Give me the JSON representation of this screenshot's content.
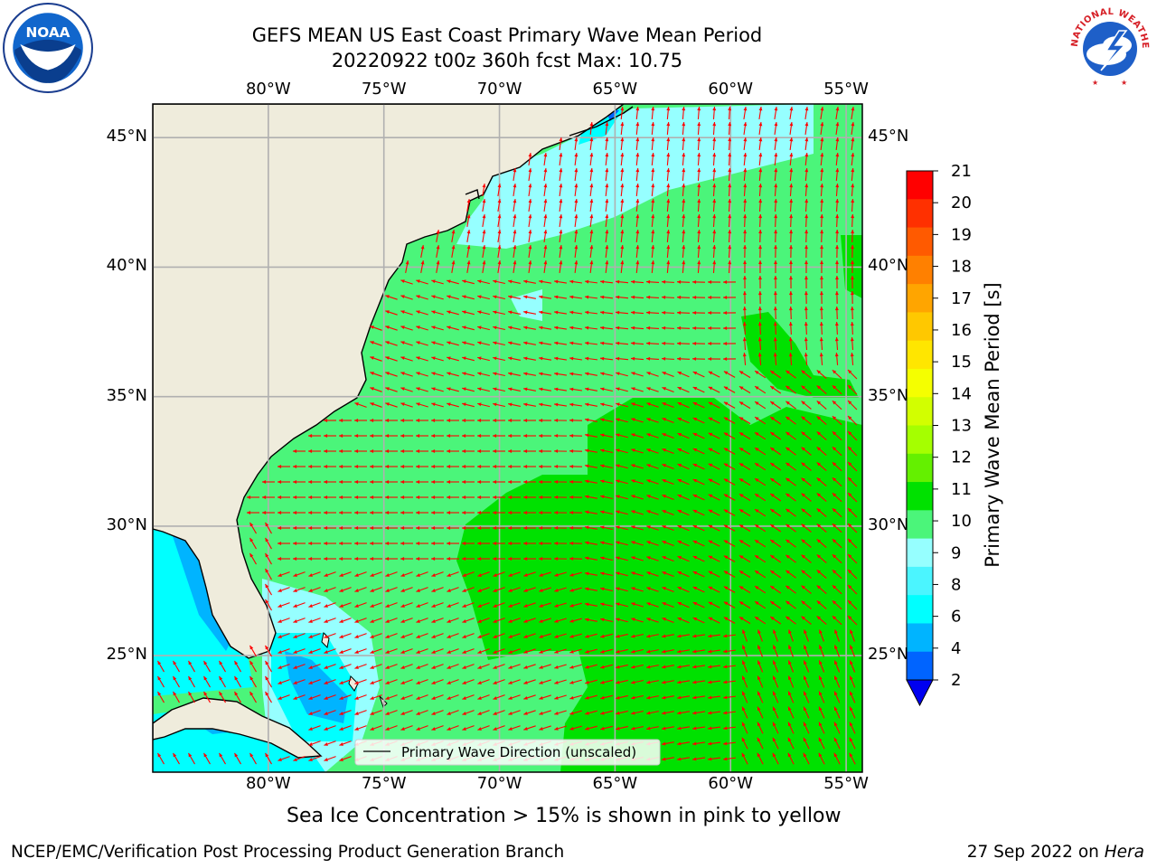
{
  "header": {
    "title_line1": "GEFS MEAN US East Coast Primary Wave Mean Period",
    "title_line2": "20220922 t00z 360h fcst   Max: 10.75"
  },
  "logos": {
    "left": "noaa-logo",
    "left_text": "NOAA",
    "right": "nws-logo",
    "right_text": "NATIONAL WEATHER SERVICE"
  },
  "map": {
    "lon_labels": [
      "80°W",
      "75°W",
      "70°W",
      "65°W",
      "60°W",
      "55°W"
    ],
    "lat_labels": [
      "45°N",
      "40°N",
      "35°N",
      "30°N",
      "25°N"
    ],
    "lon_values": [
      -80,
      -75,
      -70,
      -65,
      -60,
      -55
    ],
    "lat_values": [
      45,
      40,
      35,
      30,
      25
    ],
    "extent": {
      "lon_min": -85,
      "lon_max": -54.3,
      "lat_min": 20.5,
      "lat_max": 46.3
    },
    "land_color": "#efecdc",
    "arrow_color": "#ff0000",
    "legend_label": "Primary Wave Direction (unscaled)"
  },
  "colorbar": {
    "label": "Primary Wave Mean Period [s]",
    "ticks": [
      "21",
      "20",
      "19",
      "18",
      "17",
      "16",
      "15",
      "14",
      "13",
      "12",
      "11",
      "10",
      "9",
      "8",
      "6",
      "4",
      "2"
    ],
    "colors_top_to_bottom": [
      "#ff0000",
      "#ff3000",
      "#ff5a00",
      "#ff8000",
      "#ffa500",
      "#ffc800",
      "#ffe600",
      "#f5ff00",
      "#d2ff00",
      "#a5ff00",
      "#64f000",
      "#00e100",
      "#4bf57a",
      "#96ffff",
      "#4bf5ff",
      "#00ffff",
      "#00b4ff",
      "#0064ff"
    ],
    "extend_color": "#0000f0"
  },
  "captions": {
    "sea_ice": "Sea Ice Concentration > 15% is shown in pink to yellow",
    "footer_left": "NCEP/EMC/Verification Post Processing Product Generation Branch",
    "footer_date": "27 Sep 2022 on ",
    "footer_host": "Hera"
  }
}
